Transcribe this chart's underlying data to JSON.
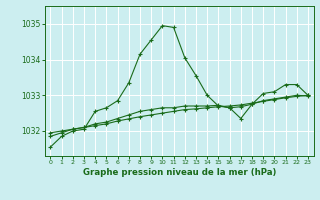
{
  "title": "Graphe pression niveau de la mer (hPa)",
  "bg_color": "#cceef0",
  "grid_color": "#ffffff",
  "line_color": "#1a6b1a",
  "x_ticks": [
    0,
    1,
    2,
    3,
    4,
    5,
    6,
    7,
    8,
    9,
    10,
    11,
    12,
    13,
    14,
    15,
    16,
    17,
    18,
    19,
    20,
    21,
    22,
    23
  ],
  "y_ticks": [
    1032,
    1033,
    1034,
    1035
  ],
  "ylim": [
    1031.3,
    1035.5
  ],
  "xlim": [
    -0.5,
    23.5
  ],
  "series1": [
    1031.55,
    1031.85,
    1032.0,
    1032.05,
    1032.55,
    1032.65,
    1032.85,
    1033.35,
    1034.15,
    1034.55,
    1034.95,
    1034.9,
    1034.05,
    1033.55,
    1033.0,
    1032.7,
    1032.65,
    1032.35,
    1032.75,
    1033.05,
    1033.1,
    1033.3,
    1033.3,
    1033.0
  ],
  "series2": [
    1031.85,
    1031.95,
    1032.05,
    1032.1,
    1032.2,
    1032.25,
    1032.35,
    1032.45,
    1032.55,
    1032.6,
    1032.65,
    1032.65,
    1032.7,
    1032.7,
    1032.7,
    1032.72,
    1032.65,
    1032.68,
    1032.75,
    1032.85,
    1032.9,
    1032.95,
    1033.0,
    1032.98
  ],
  "series3": [
    1031.95,
    1032.0,
    1032.05,
    1032.1,
    1032.15,
    1032.2,
    1032.28,
    1032.34,
    1032.4,
    1032.45,
    1032.5,
    1032.55,
    1032.6,
    1032.62,
    1032.65,
    1032.68,
    1032.7,
    1032.73,
    1032.78,
    1032.83,
    1032.88,
    1032.93,
    1032.97,
    1033.0
  ]
}
